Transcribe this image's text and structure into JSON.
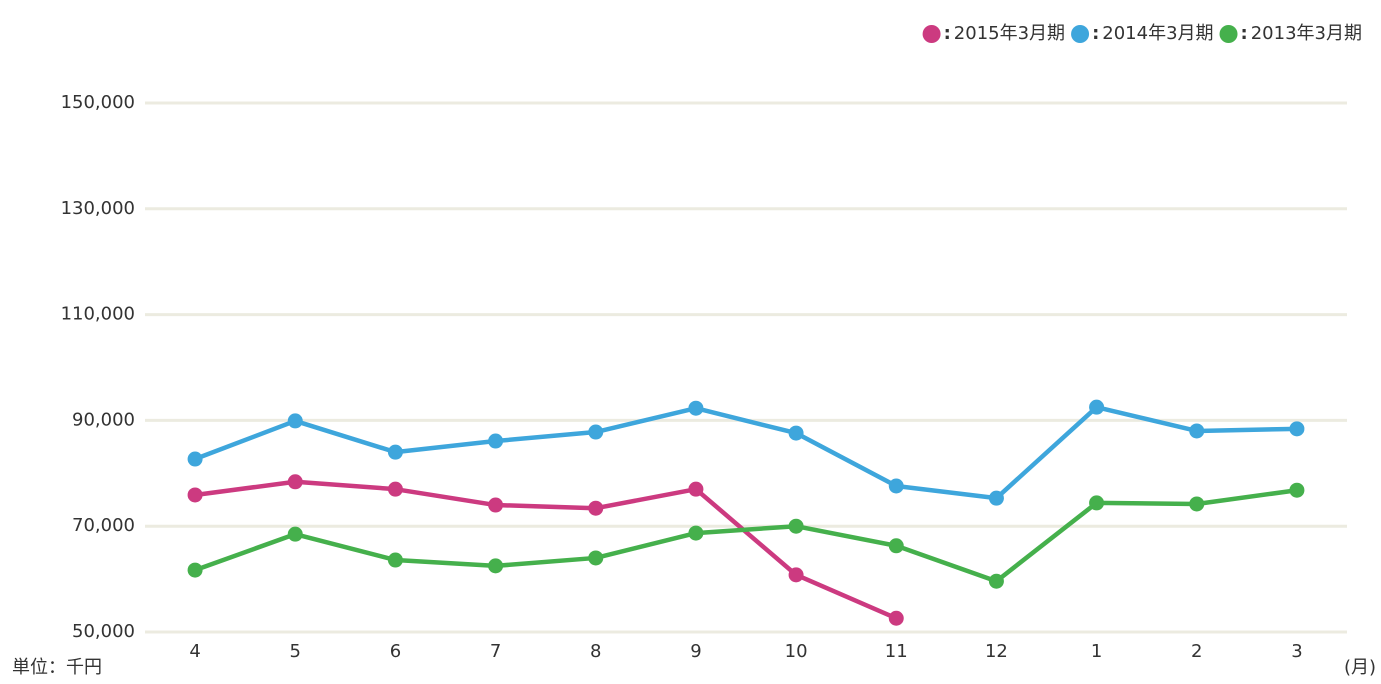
{
  "chart_data": {
    "type": "line",
    "categories": [
      "4",
      "5",
      "6",
      "7",
      "8",
      "9",
      "10",
      "11",
      "12",
      "1",
      "2",
      "3"
    ],
    "series": [
      {
        "name": "2015年3月期",
        "color": "#cc3a80",
        "values": [
          75900,
          78400,
          77000,
          74000,
          73400,
          77000,
          60800,
          52600,
          null,
          null,
          null,
          null
        ]
      },
      {
        "name": "2014年3月期",
        "color": "#3ea6dc",
        "values": [
          82700,
          89900,
          84000,
          86100,
          87800,
          92300,
          87600,
          77600,
          75300,
          92500,
          88000,
          88400
        ]
      },
      {
        "name": "2013年3月期",
        "color": "#45b04c",
        "values": [
          61700,
          68500,
          63600,
          62500,
          64000,
          68700,
          70000,
          66300,
          59600,
          74400,
          74200,
          76800
        ]
      }
    ],
    "legend_separator": ":",
    "ylim": [
      50000,
      150000
    ],
    "yticks": [
      {
        "value": 50000,
        "label": "50,000"
      },
      {
        "value": 70000,
        "label": "70,000"
      },
      {
        "value": 90000,
        "label": "90,000"
      },
      {
        "value": 110000,
        "label": "110,000"
      },
      {
        "value": 130000,
        "label": "130,000"
      },
      {
        "value": 150000,
        "label": "150,000"
      }
    ],
    "grid": true,
    "legend": "top-right",
    "y_unit_label": "単位：千円",
    "x_unit_label": "(月)"
  }
}
